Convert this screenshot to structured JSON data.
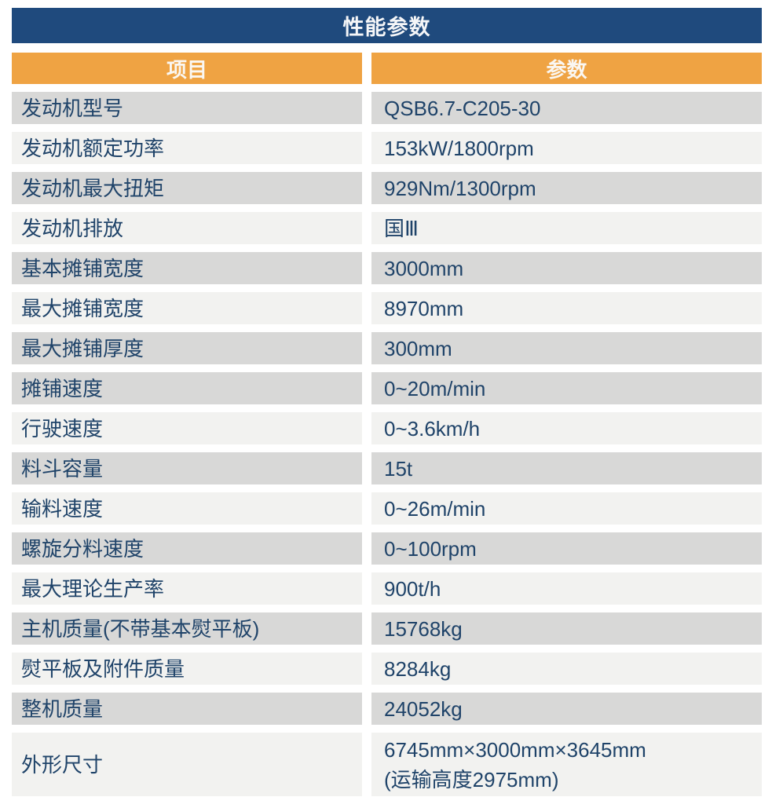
{
  "table": {
    "title": "性能参数",
    "columns": [
      "项目",
      "参数"
    ],
    "colors": {
      "title_bg": "#1F4A7D",
      "header_bg": "#EFA343",
      "row_dark": "#D8D8D7",
      "row_light": "#F2F2F0",
      "text": "#1F4369"
    },
    "rows": [
      {
        "item": "发动机型号",
        "value": "QSB6.7-C205-30",
        "shade": "dark"
      },
      {
        "item": "发动机额定功率",
        "value": "153kW/1800rpm",
        "shade": "light"
      },
      {
        "item": "发动机最大扭矩",
        "value": "929Nm/1300rpm",
        "shade": "dark"
      },
      {
        "item": "发动机排放",
        "value": "国Ⅲ",
        "shade": "light"
      },
      {
        "item": "基本摊铺宽度",
        "value": "3000mm",
        "shade": "dark"
      },
      {
        "item": "最大摊铺宽度",
        "value": "8970mm",
        "shade": "light"
      },
      {
        "item": "最大摊铺厚度",
        "value": "300mm",
        "shade": "dark"
      },
      {
        "item": "摊铺速度",
        "value": "0~20m/min",
        "shade": "dark"
      },
      {
        "item": "行驶速度",
        "value": "0~3.6km/h",
        "shade": "light"
      },
      {
        "item": "料斗容量",
        "value": "15t",
        "shade": "dark"
      },
      {
        "item": "输料速度",
        "value": "0~26m/min",
        "shade": "light"
      },
      {
        "item": "螺旋分料速度",
        "value": "0~100rpm",
        "shade": "dark"
      },
      {
        "item": "最大理论生产率",
        "value": "900t/h",
        "shade": "light"
      },
      {
        "item": "主机质量(不带基本熨平板)",
        "value": "15768kg",
        "shade": "dark"
      },
      {
        "item": "熨平板及附件质量",
        "value": "8284kg",
        "shade": "light"
      },
      {
        "item": "整机质量",
        "value": "24052kg",
        "shade": "dark"
      },
      {
        "item": "外形尺寸",
        "value": "6745mm×3000mm×3645mm",
        "value2": "(运输高度2975mm)",
        "shade": "light"
      }
    ]
  }
}
